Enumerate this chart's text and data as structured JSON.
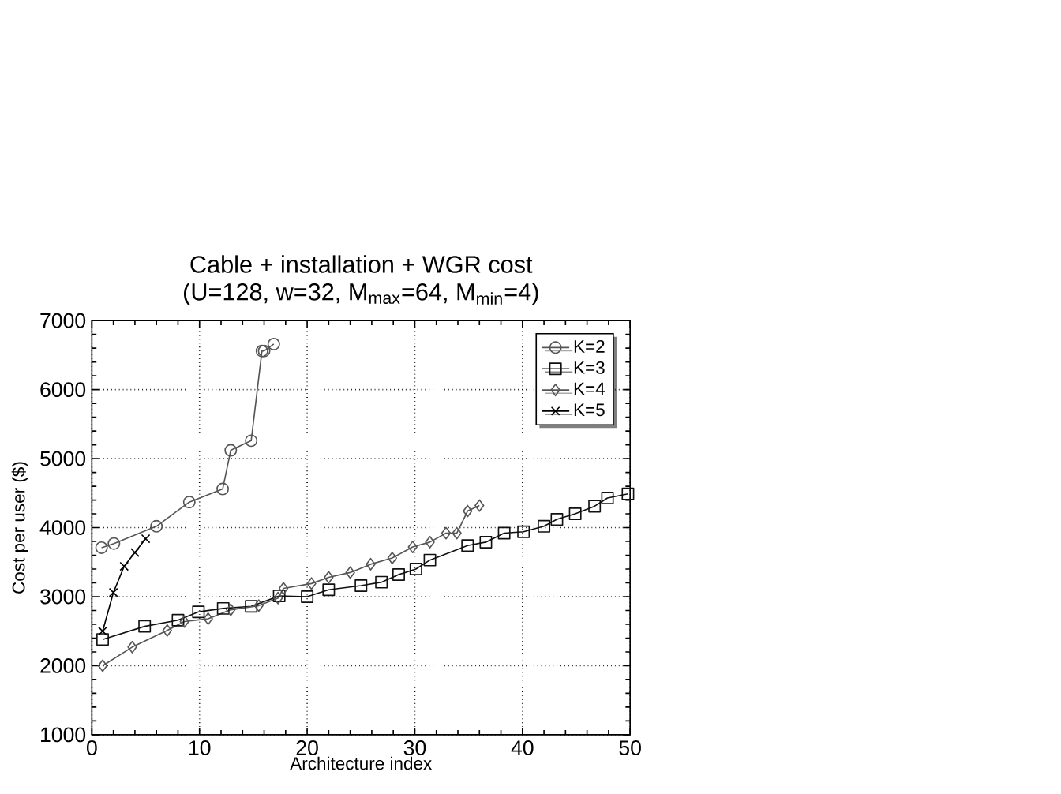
{
  "chart_data": {
    "type": "line",
    "title": "Cable + installation + WGR cost",
    "subtitle": "(U=128, w=32, M$_{max}$=64, M$_{min}$=4)",
    "xlabel": "Architecture index",
    "ylabel": "Cost per user ($)",
    "xlim": [
      0,
      50
    ],
    "ylim": [
      1000,
      7000
    ],
    "xticks": [
      0,
      10,
      20,
      30,
      40,
      50
    ],
    "yticks": [
      1000,
      2000,
      3000,
      4000,
      5000,
      6000,
      7000
    ],
    "grid": true,
    "legend": "top right",
    "series": [
      {
        "name": "K=2",
        "color": "#555555",
        "marker": "circle",
        "x": [
          0.9,
          2.05,
          6.0,
          9.05,
          12.15,
          12.9,
          14.8,
          15.8,
          16.0,
          16.9
        ],
        "values": [
          3710,
          3770,
          4020,
          4370,
          4560,
          5120,
          5260,
          6560,
          6560,
          6660
        ]
      },
      {
        "name": "K=3",
        "color": "#111111",
        "marker": "square",
        "x": [
          1,
          4.9,
          8,
          9.9,
          12.2,
          14.8,
          17.4,
          20,
          22,
          25,
          26.9,
          28.5,
          30.1,
          31.4,
          34.9,
          36.6,
          38.3,
          40.1,
          42,
          43.2,
          44.9,
          46.7,
          47.9,
          49.8
        ],
        "values": [
          2380,
          2570,
          2660,
          2780,
          2830,
          2860,
          3010,
          3000,
          3100,
          3160,
          3210,
          3320,
          3400,
          3530,
          3740,
          3790,
          3920,
          3940,
          4020,
          4120,
          4200,
          4310,
          4430,
          4490
        ]
      },
      {
        "name": "K=4",
        "color": "#555555",
        "marker": "diamond",
        "x": [
          1,
          3.75,
          7,
          8.6,
          10.8,
          12.9,
          15.5,
          17.3,
          17.8,
          20.4,
          22,
          24,
          25.9,
          27.9,
          29.8,
          31.4,
          32.9,
          33.9,
          34.9,
          36
        ],
        "values": [
          2000,
          2270,
          2510,
          2640,
          2680,
          2810,
          2870,
          2980,
          3120,
          3190,
          3280,
          3350,
          3470,
          3560,
          3720,
          3790,
          3920,
          3920,
          4240,
          4320
        ]
      },
      {
        "name": "K=5",
        "color": "#000000",
        "marker": "cross",
        "x": [
          1,
          2,
          3,
          4,
          5
        ],
        "values": [
          2500,
          3060,
          3440,
          3640,
          3840
        ]
      }
    ]
  }
}
